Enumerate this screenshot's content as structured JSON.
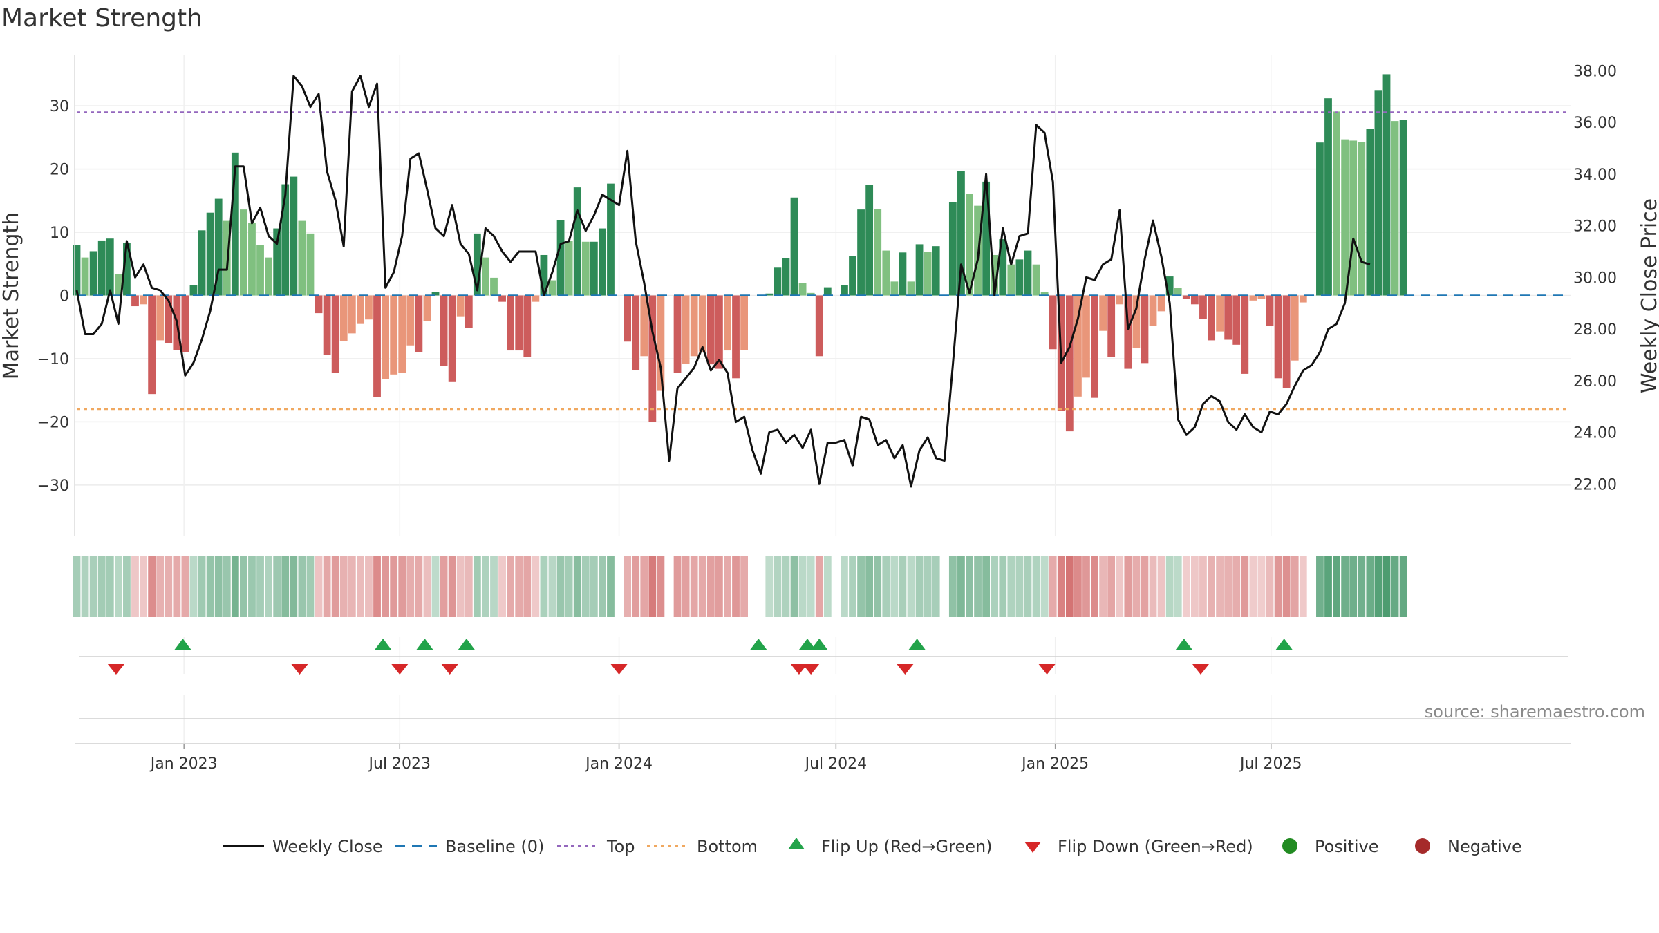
{
  "chart_data": {
    "type": "bar",
    "title": "Market Strength",
    "ylabel_left": "Market Strength",
    "ylabel_right": "Weekly Close Price",
    "ylim_left": [
      -38,
      38
    ],
    "ylim_right": [
      20.0,
      38.6
    ],
    "yticks_left": [
      30,
      20,
      10,
      0,
      -10,
      -20,
      -30
    ],
    "ytick_labels_left": [
      "30",
      "20",
      "10",
      "0",
      "−10",
      "−20",
      "−30"
    ],
    "yticks_right": [
      38,
      36,
      34,
      32,
      30,
      28,
      26,
      24,
      22
    ],
    "ytick_labels_right": [
      "38.00",
      "36.00",
      "34.00",
      "32.00",
      "30.00",
      "28.00",
      "26.00",
      "24.00",
      "22.00"
    ],
    "top_line": 29,
    "bottom_line": -18,
    "x_start": "2022-10-03",
    "x_step_days": 7,
    "x_ticks": [
      {
        "date": "2023-01-01",
        "label": "Jan 2023"
      },
      {
        "date": "2023-07-01",
        "label": "Jul 2023"
      },
      {
        "date": "2024-01-01",
        "label": "Jan 2024"
      },
      {
        "date": "2024-07-01",
        "label": "Jul 2024"
      },
      {
        "date": "2025-01-01",
        "label": "Jan 2025"
      },
      {
        "date": "2025-07-01",
        "label": "Jul 2025"
      }
    ],
    "strength": [
      8,
      6,
      7,
      8.7,
      9,
      3.4,
      8.3,
      -1.7,
      -1.4,
      -15.6,
      -7.1,
      -7.6,
      -8.6,
      -9,
      1.6,
      10.3,
      13.1,
      15.3,
      11.8,
      22.6,
      13.6,
      11.5,
      8,
      6,
      10.6,
      17.6,
      18.8,
      11.8,
      9.8,
      -2.8,
      -9.4,
      -12.3,
      -7.2,
      -6,
      -4.5,
      -3.8,
      -16.1,
      -13.2,
      -12.5,
      -12.3,
      -7.9,
      -9,
      -4.1,
      0.5,
      -11.2,
      -13.7,
      -3.3,
      -5.1,
      9.8,
      6,
      2.8,
      -1,
      -8.7,
      -8.7,
      -9.7,
      -1,
      6.4,
      2.4,
      11.9,
      8.6,
      17.1,
      8.5,
      8.5,
      10.6,
      17.7,
      0,
      -7.3,
      -11.8,
      -9.6,
      -20,
      -15.1,
      0,
      -12.3,
      -10.8,
      -9.6,
      -8.9,
      -10.9,
      -11.6,
      -8.7,
      -13.1,
      -8.6,
      0,
      0,
      0.3,
      4.4,
      5.9,
      15.5,
      2,
      0.4,
      -9.6,
      1.3,
      0,
      1.6,
      6.2,
      13.6,
      17.5,
      13.7,
      7.1,
      2.2,
      6.8,
      2.2,
      8.1,
      6.9,
      7.8,
      0,
      14.8,
      19.7,
      16.1,
      14.2,
      18,
      6.4,
      8.9,
      4.9,
      5.7,
      7.1,
      4.9,
      0.5,
      -8.5,
      -18.3,
      -21.5,
      -16,
      -13,
      -16.2,
      -5.6,
      -9.7,
      -1.4,
      -11.6,
      -8.3,
      -10.7,
      -4.8,
      -2.5,
      3,
      1.2,
      -0.5,
      -1.4,
      -3.7,
      -7.1,
      -5.7,
      -7,
      -7.8,
      -12.4,
      -0.8,
      -0.5,
      -4.8,
      -13.1,
      -14.7,
      -10.3,
      -1.1,
      0,
      24.2,
      31.2,
      29.1,
      24.7,
      24.5,
      24.3,
      26.4,
      32.5,
      35,
      27.6,
      27.8
    ],
    "price": [
      29.5,
      27.8,
      27.8,
      28.2,
      29.5,
      28.2,
      31.4,
      30.0,
      30.5,
      29.6,
      29.5,
      29.1,
      28.3,
      26.2,
      26.7,
      27.6,
      28.7,
      30.3,
      30.3,
      34.3,
      34.3,
      32.1,
      32.7,
      31.6,
      31.3,
      33.2,
      37.8,
      37.4,
      36.6,
      37.1,
      34.1,
      33.0,
      31.2,
      37.2,
      37.8,
      36.6,
      37.5,
      29.6,
      30.2,
      31.6,
      34.6,
      34.8,
      33.4,
      31.9,
      31.6,
      32.8,
      31.3,
      30.9,
      29.5,
      31.9,
      31.6,
      31.0,
      30.6,
      31.0,
      31.0,
      31.0,
      29.3,
      30.2,
      31.3,
      31.4,
      32.6,
      31.8,
      32.4,
      33.2,
      33.0,
      32.8,
      34.9,
      31.4,
      29.8,
      27.9,
      26.5,
      22.9,
      25.7,
      26.1,
      26.5,
      27.3,
      26.4,
      26.8,
      26.3,
      24.4,
      24.6,
      23.3,
      22.4,
      24.0,
      24.1,
      23.6,
      23.9,
      23.4,
      24.1,
      22.0,
      23.6,
      23.6,
      23.7,
      22.7,
      24.6,
      24.5,
      23.5,
      23.7,
      23.0,
      23.5,
      21.9,
      23.3,
      23.8,
      23.0,
      22.9,
      26.6,
      30.5,
      29.4,
      30.7,
      34.0,
      29.3,
      31.9,
      30.5,
      31.6,
      31.7,
      35.9,
      35.6,
      33.7,
      26.7,
      27.3,
      28.4,
      30.0,
      29.9,
      30.5,
      30.7,
      32.6,
      28.0,
      28.8,
      30.7,
      32.2,
      30.8,
      29.0,
      24.5,
      23.9,
      24.2,
      25.1,
      25.4,
      25.2,
      24.4,
      24.1,
      24.7,
      24.2,
      24.0,
      24.8,
      24.7,
      25.1,
      25.8,
      26.4,
      26.6,
      27.1,
      28.0,
      28.2,
      29.0,
      31.5,
      30.6,
      30.5
    ],
    "flip_up_dates": [
      "2022-12-31",
      "2023-06-17",
      "2023-07-22",
      "2023-08-26",
      "2024-04-27",
      "2024-06-07",
      "2024-06-17",
      "2024-09-07",
      "2025-04-19",
      "2025-07-12"
    ],
    "flip_down_dates": [
      "2022-11-05",
      "2023-04-08",
      "2023-07-01",
      "2023-08-12",
      "2024-01-01",
      "2024-05-31",
      "2024-06-10",
      "2024-08-28",
      "2024-12-25",
      "2025-05-03"
    ],
    "legend": {
      "placement": "bottom",
      "entries": [
        {
          "key": "close",
          "label": "Weekly Close"
        },
        {
          "key": "baseline",
          "label": "Baseline (0)"
        },
        {
          "key": "top",
          "label": "Top"
        },
        {
          "key": "bottom",
          "label": "Bottom"
        },
        {
          "key": "flipup",
          "label": "Flip Up (Red→Green)"
        },
        {
          "key": "flipdown",
          "label": "Flip Down (Green→Red)"
        },
        {
          "key": "positive",
          "label": "Positive"
        },
        {
          "key": "negative",
          "label": "Negative"
        }
      ]
    },
    "source": "source: sharemaestro.com"
  },
  "colors": {
    "pos_strong": "#2e8b57",
    "pos_weak": "#80c080",
    "neg_strong": "#cd5c5c",
    "neg_weak": "#e9967a",
    "price_line": "#111111",
    "baseline": "#1f77b4",
    "top": "#9467bd",
    "bottom": "#f0a860",
    "flip_up": "#22a34a",
    "flip_down": "#d62728",
    "positive_dot": "#228b22",
    "negative_dot": "#a52a2a"
  }
}
